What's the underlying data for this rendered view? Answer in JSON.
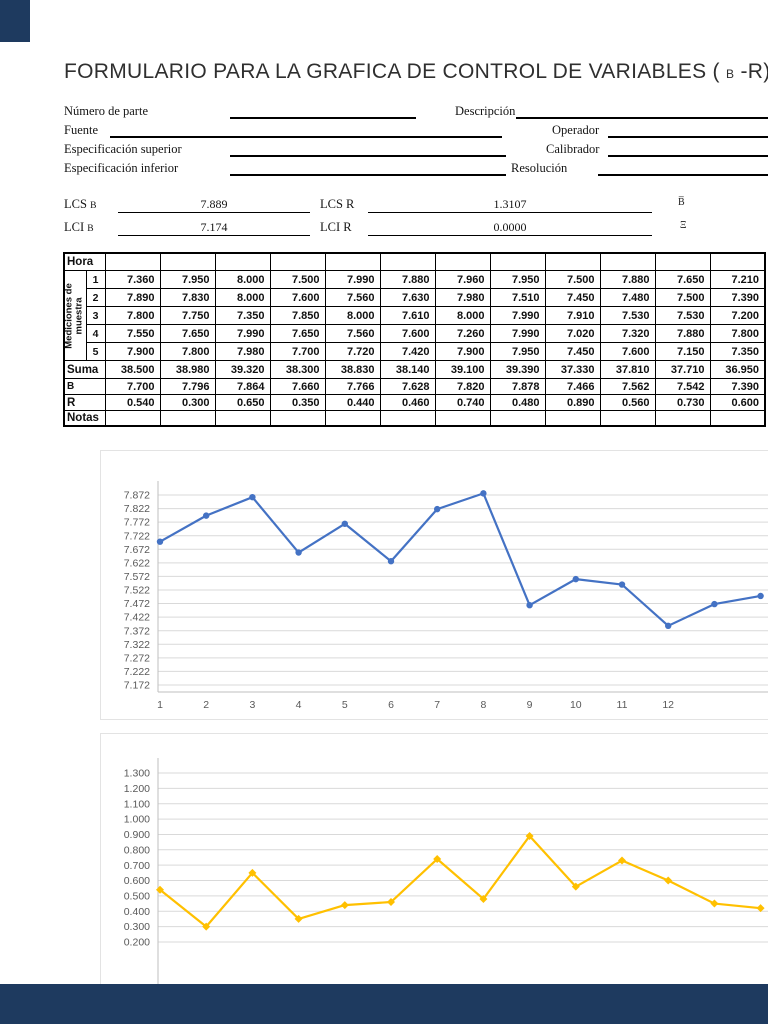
{
  "viewer": {
    "chrome_color": "#1e3a5f"
  },
  "title": {
    "before": "FORMULARIO PARA LA GRAFICA DE CONTROL DE VARIABLES ( ",
    "symbol": "B",
    "after": " -R)"
  },
  "form": {
    "numero_parte": "Número de parte",
    "descripcion": "Descripción",
    "fuente": "Fuente",
    "operador": "Operador",
    "especificacion_superior": "Especificación superior",
    "calibrador": "Calibrador",
    "especificacion_inferior": "Especificación inferior",
    "resolucion": "Resolución"
  },
  "limits": {
    "lcs_x_label": "LCS",
    "lcs_x_symbol": "B",
    "lcs_x_value": "7.889",
    "lcs_r_label": "LCS R",
    "lcs_r_value": "1.3107",
    "lci_x_label": "LCI",
    "lci_x_symbol": "B",
    "lci_x_value": "7.174",
    "lci_r_label": "LCI R",
    "lci_r_value": "0.0000",
    "right_symbol_top": "B̅",
    "right_symbol_bottom": "Ξ"
  },
  "table": {
    "hora_label": "Hora",
    "side_label": "Mediciones de muestra",
    "row_numbers": [
      "1",
      "2",
      "3",
      "4",
      "5"
    ],
    "measurements": [
      [
        "7.360",
        "7.950",
        "8.000",
        "7.500",
        "7.990",
        "7.880",
        "7.960",
        "7.950",
        "7.500",
        "7.880",
        "7.650",
        "7.210"
      ],
      [
        "7.890",
        "7.830",
        "8.000",
        "7.600",
        "7.560",
        "7.630",
        "7.980",
        "7.510",
        "7.450",
        "7.480",
        "7.500",
        "7.390"
      ],
      [
        "7.800",
        "7.750",
        "7.350",
        "7.850",
        "8.000",
        "7.610",
        "8.000",
        "7.990",
        "7.910",
        "7.530",
        "7.530",
        "7.200"
      ],
      [
        "7.550",
        "7.650",
        "7.990",
        "7.650",
        "7.560",
        "7.600",
        "7.260",
        "7.990",
        "7.020",
        "7.320",
        "7.880",
        "7.800"
      ],
      [
        "7.900",
        "7.800",
        "7.980",
        "7.700",
        "7.720",
        "7.420",
        "7.900",
        "7.950",
        "7.450",
        "7.600",
        "7.150",
        "7.350"
      ]
    ],
    "suma_label": "Suma",
    "suma": [
      "38.500",
      "38.980",
      "39.320",
      "38.300",
      "38.830",
      "38.140",
      "39.100",
      "39.390",
      "37.330",
      "37.810",
      "37.710",
      "36.950"
    ],
    "xbar_label": "B",
    "xbar": [
      "7.700",
      "7.796",
      "7.864",
      "7.660",
      "7.766",
      "7.628",
      "7.820",
      "7.878",
      "7.466",
      "7.562",
      "7.542",
      "7.390"
    ],
    "r_label": "R",
    "r": [
      "0.540",
      "0.300",
      "0.650",
      "0.350",
      "0.440",
      "0.460",
      "0.740",
      "0.480",
      "0.890",
      "0.560",
      "0.730",
      "0.600"
    ],
    "notas_label": "Notas"
  },
  "chart_data": [
    {
      "type": "line",
      "title": "",
      "xlabel": "",
      "ylabel": "",
      "series": [
        {
          "name": "x-bar (B)",
          "values": [
            7.7,
            7.796,
            7.864,
            7.66,
            7.766,
            7.628,
            7.82,
            7.878,
            7.466,
            7.562,
            7.542,
            7.39
          ]
        }
      ],
      "edge_values_estimated": [
        7.47,
        7.5
      ],
      "x_labels": [
        "1",
        "2",
        "3",
        "4",
        "5",
        "6",
        "7",
        "8",
        "9",
        "10",
        "11",
        "12"
      ],
      "yticks": [
        "7.872",
        "7.822",
        "7.772",
        "7.722",
        "7.672",
        "7.622",
        "7.572",
        "7.522",
        "7.472",
        "7.422",
        "7.372",
        "7.322",
        "7.272",
        "7.222",
        "7.172"
      ],
      "ylim": [
        7.172,
        7.872
      ],
      "grid": true,
      "legend": "none",
      "line_color": "#4472C4",
      "marker": "circle"
    },
    {
      "type": "line",
      "title": "",
      "xlabel": "",
      "ylabel": "",
      "series": [
        {
          "name": "R",
          "values": [
            0.54,
            0.3,
            0.65,
            0.35,
            0.44,
            0.46,
            0.74,
            0.48,
            0.89,
            0.56,
            0.73,
            0.6
          ]
        }
      ],
      "edge_values_estimated": [
        0.45,
        0.42
      ],
      "x_labels": [],
      "yticks": [
        "1.300",
        "1.200",
        "1.100",
        "1.000",
        "0.900",
        "0.800",
        "0.700",
        "0.600",
        "0.500",
        "0.400",
        "0.300",
        "0.200"
      ],
      "ylim": [
        0.2,
        1.3
      ],
      "grid": true,
      "legend": "none",
      "line_color": "#FFC000",
      "marker": "diamond"
    }
  ]
}
